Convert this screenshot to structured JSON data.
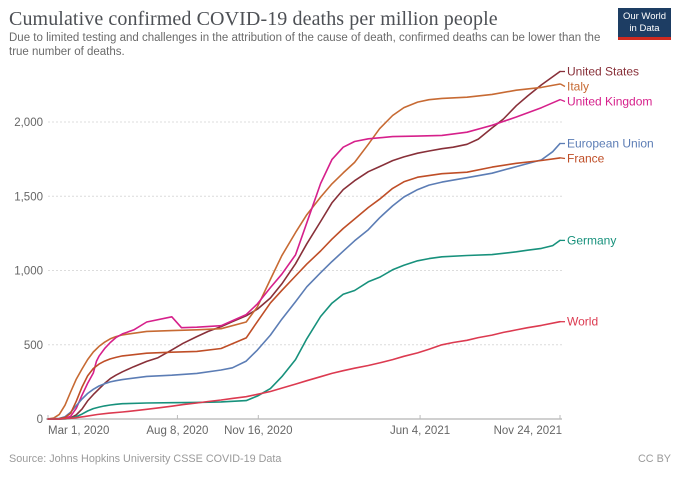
{
  "header": {
    "title": "Cumulative confirmed COVID-19 deaths per million people",
    "subtitle": "Due to limited testing and challenges in the attribution of the cause of death, confirmed deaths can be lower than the true number of deaths.",
    "logo": {
      "line1": "Our World",
      "line2": "in Data",
      "background": "#1d3d63",
      "accent": "#cf2a1f"
    }
  },
  "footer": {
    "source": "Source: Johns Hopkins University CSSE COVID-19 Data",
    "license": "CC BY"
  },
  "chart_data": {
    "type": "line",
    "title": "Cumulative confirmed COVID-19 deaths per million people",
    "x_axis": {
      "unit": "date",
      "start": "2020-03-01",
      "end": "2021-11-24",
      "total_days": 633,
      "ticks": [
        {
          "day": 0,
          "label": "Mar 1, 2020",
          "align": "start"
        },
        {
          "day": 160,
          "label": "Aug 8, 2020",
          "align": "middle"
        },
        {
          "day": 260,
          "label": "Nov 16, 2020",
          "align": "middle"
        },
        {
          "day": 460,
          "label": "Jun 4, 2021",
          "align": "middle"
        },
        {
          "day": 633,
          "label": "Nov 24, 2021",
          "align": "end"
        }
      ]
    },
    "y_axis": {
      "min": 0,
      "max": 2000,
      "gridlines": "dotted",
      "ticks": [
        {
          "value": 0,
          "label": "0"
        },
        {
          "value": 500,
          "label": "500"
        },
        {
          "value": 1000,
          "label": "1,000"
        },
        {
          "value": 1500,
          "label": "1,500"
        },
        {
          "value": 2000,
          "label": "2,000"
        }
      ]
    },
    "colors": {
      "axis": "#a0a0a0",
      "grid": "#dcdcdc",
      "tick_text": "#666666"
    },
    "legend_position": "right-of-line-ends",
    "series": [
      {
        "name": "United States",
        "color": "#883039",
        "points": [
          [
            0,
            1
          ],
          [
            14,
            1
          ],
          [
            21,
            2
          ],
          [
            28,
            8
          ],
          [
            35,
            28
          ],
          [
            42,
            67
          ],
          [
            49,
            122
          ],
          [
            56,
            164
          ],
          [
            63,
            203
          ],
          [
            70,
            240
          ],
          [
            77,
            272
          ],
          [
            84,
            295
          ],
          [
            92,
            318
          ],
          [
            106,
            352
          ],
          [
            122,
            388
          ],
          [
            136,
            413
          ],
          [
            153,
            465
          ],
          [
            167,
            510
          ],
          [
            184,
            555
          ],
          [
            198,
            590
          ],
          [
            214,
            622
          ],
          [
            228,
            655
          ],
          [
            245,
            695
          ],
          [
            259,
            740
          ],
          [
            275,
            815
          ],
          [
            289,
            910
          ],
          [
            306,
            1045
          ],
          [
            320,
            1180
          ],
          [
            337,
            1330
          ],
          [
            351,
            1455
          ],
          [
            365,
            1545
          ],
          [
            379,
            1605
          ],
          [
            396,
            1665
          ],
          [
            410,
            1700
          ],
          [
            426,
            1740
          ],
          [
            440,
            1765
          ],
          [
            457,
            1790
          ],
          [
            471,
            1805
          ],
          [
            487,
            1820
          ],
          [
            501,
            1830
          ],
          [
            518,
            1850
          ],
          [
            532,
            1885
          ],
          [
            549,
            1960
          ],
          [
            563,
            2020
          ],
          [
            579,
            2110
          ],
          [
            593,
            2175
          ],
          [
            610,
            2250
          ],
          [
            633,
            2340
          ]
        ]
      },
      {
        "name": "Italy",
        "color": "#C76A33",
        "points": [
          [
            0,
            1
          ],
          [
            7,
            6
          ],
          [
            14,
            31
          ],
          [
            21,
            93
          ],
          [
            28,
            182
          ],
          [
            35,
            269
          ],
          [
            42,
            337
          ],
          [
            49,
            400
          ],
          [
            56,
            451
          ],
          [
            63,
            489
          ],
          [
            70,
            517
          ],
          [
            77,
            540
          ],
          [
            84,
            555
          ],
          [
            92,
            566
          ],
          [
            122,
            590
          ],
          [
            153,
            595
          ],
          [
            184,
            601
          ],
          [
            214,
            608
          ],
          [
            245,
            653
          ],
          [
            259,
            756
          ],
          [
            275,
            940
          ],
          [
            289,
            1100
          ],
          [
            306,
            1255
          ],
          [
            320,
            1376
          ],
          [
            337,
            1494
          ],
          [
            351,
            1583
          ],
          [
            365,
            1657
          ],
          [
            379,
            1728
          ],
          [
            396,
            1850
          ],
          [
            410,
            1955
          ],
          [
            426,
            2044
          ],
          [
            440,
            2097
          ],
          [
            457,
            2134
          ],
          [
            471,
            2150
          ],
          [
            487,
            2159
          ],
          [
            518,
            2167
          ],
          [
            549,
            2186
          ],
          [
            579,
            2214
          ],
          [
            610,
            2233
          ],
          [
            633,
            2256
          ]
        ]
      },
      {
        "name": "United Kingdom",
        "color": "#D6208B",
        "points": [
          [
            0,
            0
          ],
          [
            14,
            1
          ],
          [
            21,
            4
          ],
          [
            28,
            18
          ],
          [
            35,
            72
          ],
          [
            42,
            160
          ],
          [
            49,
            240
          ],
          [
            56,
            310
          ],
          [
            60,
            390
          ],
          [
            63,
            423
          ],
          [
            70,
            474
          ],
          [
            77,
            515
          ],
          [
            84,
            548
          ],
          [
            92,
            573
          ],
          [
            106,
            600
          ],
          [
            122,
            653
          ],
          [
            153,
            688
          ],
          [
            165,
            615
          ],
          [
            184,
            618
          ],
          [
            214,
            628
          ],
          [
            245,
            703
          ],
          [
            259,
            776
          ],
          [
            275,
            885
          ],
          [
            289,
            975
          ],
          [
            306,
            1105
          ],
          [
            320,
            1321
          ],
          [
            337,
            1586
          ],
          [
            351,
            1747
          ],
          [
            365,
            1830
          ],
          [
            379,
            1869
          ],
          [
            396,
            1887
          ],
          [
            426,
            1902
          ],
          [
            457,
            1905
          ],
          [
            487,
            1910
          ],
          [
            518,
            1931
          ],
          [
            549,
            1978
          ],
          [
            579,
            2034
          ],
          [
            610,
            2096
          ],
          [
            633,
            2150
          ]
        ]
      },
      {
        "name": "European Union",
        "color": "#5C7DB5",
        "points": [
          [
            0,
            0
          ],
          [
            14,
            4
          ],
          [
            21,
            15
          ],
          [
            28,
            45
          ],
          [
            35,
            90
          ],
          [
            42,
            135
          ],
          [
            49,
            172
          ],
          [
            56,
            200
          ],
          [
            63,
            222
          ],
          [
            70,
            238
          ],
          [
            77,
            250
          ],
          [
            84,
            258
          ],
          [
            92,
            265
          ],
          [
            122,
            287
          ],
          [
            153,
            295
          ],
          [
            184,
            307
          ],
          [
            214,
            330
          ],
          [
            228,
            345
          ],
          [
            245,
            390
          ],
          [
            259,
            465
          ],
          [
            275,
            565
          ],
          [
            289,
            672
          ],
          [
            306,
            790
          ],
          [
            320,
            890
          ],
          [
            337,
            985
          ],
          [
            351,
            1060
          ],
          [
            365,
            1130
          ],
          [
            379,
            1200
          ],
          [
            396,
            1275
          ],
          [
            410,
            1355
          ],
          [
            426,
            1435
          ],
          [
            440,
            1495
          ],
          [
            457,
            1545
          ],
          [
            471,
            1575
          ],
          [
            487,
            1595
          ],
          [
            518,
            1625
          ],
          [
            549,
            1655
          ],
          [
            579,
            1700
          ],
          [
            610,
            1745
          ],
          [
            624,
            1800
          ],
          [
            633,
            1855
          ]
        ]
      },
      {
        "name": "France",
        "color": "#BF4E27",
        "points": [
          [
            0,
            0
          ],
          [
            14,
            2
          ],
          [
            21,
            10
          ],
          [
            28,
            38
          ],
          [
            35,
            120
          ],
          [
            42,
            215
          ],
          [
            49,
            290
          ],
          [
            56,
            340
          ],
          [
            63,
            370
          ],
          [
            70,
            390
          ],
          [
            77,
            405
          ],
          [
            84,
            415
          ],
          [
            92,
            425
          ],
          [
            122,
            443
          ],
          [
            153,
            450
          ],
          [
            184,
            455
          ],
          [
            214,
            475
          ],
          [
            245,
            546
          ],
          [
            259,
            657
          ],
          [
            275,
            782
          ],
          [
            289,
            866
          ],
          [
            306,
            963
          ],
          [
            320,
            1043
          ],
          [
            337,
            1131
          ],
          [
            351,
            1211
          ],
          [
            365,
            1283
          ],
          [
            379,
            1347
          ],
          [
            396,
            1424
          ],
          [
            410,
            1480
          ],
          [
            426,
            1553
          ],
          [
            440,
            1597
          ],
          [
            457,
            1628
          ],
          [
            487,
            1652
          ],
          [
            518,
            1662
          ],
          [
            549,
            1696
          ],
          [
            579,
            1722
          ],
          [
            610,
            1741
          ],
          [
            633,
            1758
          ]
        ]
      },
      {
        "name": "Germany",
        "color": "#17917C",
        "points": [
          [
            0,
            0
          ],
          [
            21,
            1
          ],
          [
            28,
            5
          ],
          [
            35,
            16
          ],
          [
            42,
            33
          ],
          [
            49,
            54
          ],
          [
            56,
            70
          ],
          [
            63,
            80
          ],
          [
            70,
            88
          ],
          [
            77,
            94
          ],
          [
            84,
            99
          ],
          [
            92,
            103
          ],
          [
            122,
            108
          ],
          [
            153,
            110
          ],
          [
            184,
            112
          ],
          [
            214,
            115
          ],
          [
            245,
            124
          ],
          [
            259,
            155
          ],
          [
            275,
            205
          ],
          [
            289,
            285
          ],
          [
            306,
            400
          ],
          [
            320,
            540
          ],
          [
            337,
            690
          ],
          [
            351,
            780
          ],
          [
            365,
            840
          ],
          [
            379,
            865
          ],
          [
            396,
            924
          ],
          [
            410,
            954
          ],
          [
            426,
            1005
          ],
          [
            440,
            1035
          ],
          [
            457,
            1065
          ],
          [
            471,
            1080
          ],
          [
            487,
            1092
          ],
          [
            518,
            1101
          ],
          [
            549,
            1107
          ],
          [
            579,
            1126
          ],
          [
            593,
            1137
          ],
          [
            610,
            1149
          ],
          [
            624,
            1168
          ],
          [
            633,
            1203
          ]
        ]
      },
      {
        "name": "World",
        "color": "#DC3A50",
        "points": [
          [
            0,
            0
          ],
          [
            14,
            1
          ],
          [
            31,
            6
          ],
          [
            45,
            16
          ],
          [
            61,
            30
          ],
          [
            75,
            39
          ],
          [
            92,
            47
          ],
          [
            106,
            55
          ],
          [
            122,
            65
          ],
          [
            136,
            75
          ],
          [
            153,
            86
          ],
          [
            167,
            97
          ],
          [
            184,
            108
          ],
          [
            198,
            118
          ],
          [
            214,
            128
          ],
          [
            228,
            139
          ],
          [
            245,
            150
          ],
          [
            259,
            166
          ],
          [
            275,
            185
          ],
          [
            289,
            208
          ],
          [
            306,
            235
          ],
          [
            320,
            258
          ],
          [
            337,
            285
          ],
          [
            351,
            307
          ],
          [
            365,
            325
          ],
          [
            379,
            342
          ],
          [
            396,
            360
          ],
          [
            410,
            378
          ],
          [
            426,
            400
          ],
          [
            440,
            422
          ],
          [
            457,
            445
          ],
          [
            471,
            470
          ],
          [
            487,
            500
          ],
          [
            501,
            515
          ],
          [
            518,
            530
          ],
          [
            532,
            548
          ],
          [
            549,
            565
          ],
          [
            563,
            583
          ],
          [
            579,
            600
          ],
          [
            593,
            615
          ],
          [
            610,
            630
          ],
          [
            633,
            655
          ]
        ]
      }
    ]
  }
}
